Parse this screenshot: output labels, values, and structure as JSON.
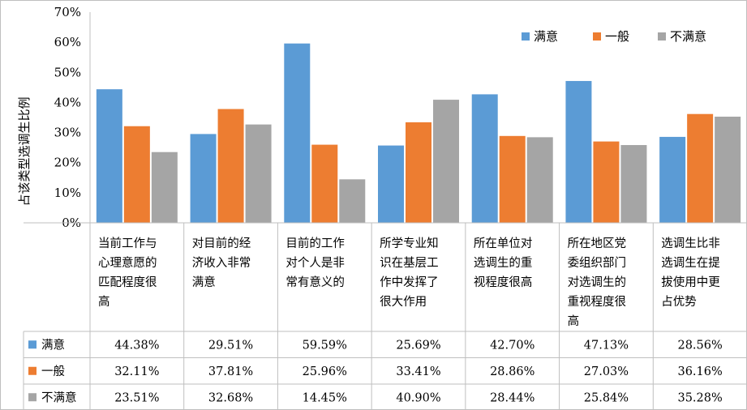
{
  "chart_data": {
    "type": "bar",
    "ylabel": "占该类型选调生比例",
    "ylim": [
      0,
      70
    ],
    "yticks": [
      "0%",
      "10%",
      "20%",
      "30%",
      "40%",
      "50%",
      "60%",
      "70%"
    ],
    "legend_position": "top-right",
    "grid": false,
    "categories": [
      [
        "当前工作与",
        "心理意愿的",
        "匹配程度很",
        "高"
      ],
      [
        "对目前的经",
        "济收入非常",
        "满意"
      ],
      [
        "目前的工作",
        "对个人是非",
        "常有意义的"
      ],
      [
        "所学专业知",
        "识在基层工",
        "作中发挥了",
        "很大作用"
      ],
      [
        "所在单位对",
        "选调生的重",
        "视程度很高"
      ],
      [
        "所在地区党",
        "委组织部门",
        "对选调生的",
        "重视程度很",
        "高"
      ],
      [
        "选调生比非",
        "选调生在提",
        "拔使用中更",
        "占优势"
      ]
    ],
    "series": [
      {
        "name": "满意",
        "color": "#5B9BD5",
        "values": [
          44.38,
          29.51,
          59.59,
          25.69,
          42.7,
          47.13,
          28.56
        ],
        "labels": [
          "44.38%",
          "29.51%",
          "59.59%",
          "25.69%",
          "42.70%",
          "47.13%",
          "28.56%"
        ]
      },
      {
        "name": "一般",
        "color": "#ED7D31",
        "values": [
          32.11,
          37.81,
          25.96,
          33.41,
          28.86,
          27.03,
          36.16
        ],
        "labels": [
          "32.11%",
          "37.81%",
          "25.96%",
          "33.41%",
          "28.86%",
          "27.03%",
          "36.16%"
        ]
      },
      {
        "name": "不满意",
        "color": "#A5A5A5",
        "values": [
          23.51,
          32.68,
          14.45,
          40.9,
          28.44,
          25.84,
          35.28
        ],
        "labels": [
          "23.51%",
          "32.68%",
          "14.45%",
          "40.90%",
          "28.44%",
          "25.84%",
          "35.28%"
        ]
      }
    ]
  }
}
